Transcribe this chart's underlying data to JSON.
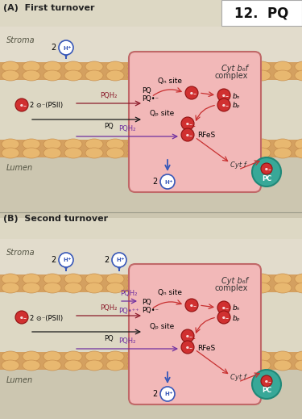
{
  "title_A": "(A)  First turnover",
  "title_B": "(B)  Second turnover",
  "badge_text": "12.  PQ",
  "bg_color": "#ddd8c4",
  "stroma_color": "#e8e2cc",
  "lumen_color": "#ccc4a8",
  "mem_color": "#d4a060",
  "mem_bump_color": "#e8b870",
  "mem_bump_edge": "#c89050",
  "complex_fill": "#f2b8b8",
  "complex_border": "#c06868",
  "pc_fill": "#38a898",
  "pc_border": "#208878",
  "electron_fill": "#d03030",
  "electron_border": "#901010",
  "h_fill": "#ffffff",
  "h_border": "#3858b8",
  "h_text": "#3858b8",
  "arrow_blue": "#3858b8",
  "arrow_red": "#c83030",
  "arrow_dark_red": "#8b1a2a",
  "arrow_black": "#1a1a1a",
  "text_dark": "#222222",
  "text_gray": "#444444",
  "stroma_label": "Stroma",
  "lumen_label": "Lumen",
  "complex_label_line1": "Cyt b₆f",
  "complex_label_line2": "complex",
  "qn_label": "Qₙ site",
  "qp_label": "Qₚ site",
  "rfes_label": "RFeS",
  "cytf_label": "Cyt f",
  "pc_label": "PC",
  "bn_label": "bₙ",
  "bp_label": "bₚ",
  "pq_label": "PQ",
  "pqr_label": "PQ•⁻",
  "pqh2_label": "PQH₂",
  "pqh2_top_label": "PQH₂",
  "pq_plus_label": "PQ•⁺⁺",
  "psii_label": "2 ⊙⁻(PSII)"
}
